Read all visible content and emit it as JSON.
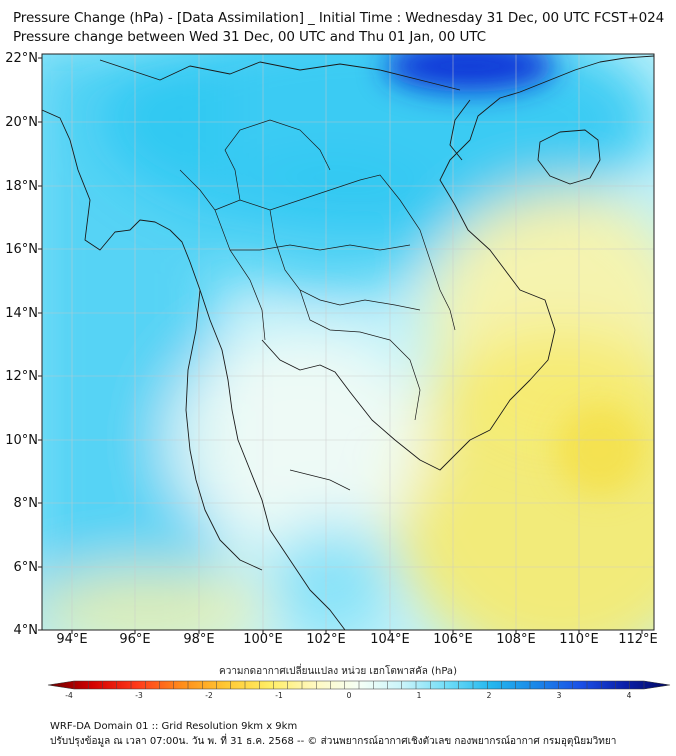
{
  "header": {
    "title_line1": "Pressure Change (hPa) - [Data Assimilation] _ Initial Time : Wednesday 31 Dec, 00 UTC FCST+024",
    "title_line2": "Pressure change between Wed 31 Dec, 00 UTC and Thu 01 Jan, 00 UTC"
  },
  "map": {
    "lat_labels": [
      "22°N",
      "20°N",
      "18°N",
      "16°N",
      "14°N",
      "12°N",
      "10°N",
      "8°N",
      "6°N",
      "4°N"
    ],
    "lon_labels": [
      "94°E",
      "96°E",
      "98°E",
      "100°E",
      "102°E",
      "104°E",
      "106°E",
      "108°E",
      "110°E",
      "112°E"
    ],
    "field_colors": {
      "strong_rise": "#0b2fd6",
      "rise": "#2bc6f2",
      "weak_rise": "#bff2fb",
      "neutral": "#f6fbf4",
      "fall": "#fbf3a6",
      "strong_fall": "#f7ea6b"
    },
    "coastline_color": "#1a1a1a",
    "grid_color": "#c9c9c9"
  },
  "colorbar": {
    "title": "ความกดอากาศเปลี่ยนแปลง หน่วย เฮกโตพาสคัล (hPa)",
    "ticks": [
      "-4",
      "-3",
      "-2",
      "-1",
      "0",
      "1",
      "2",
      "3",
      "4"
    ],
    "min": -4,
    "max": 4,
    "stops": [
      "#6a0000",
      "#d40000",
      "#ff3a1a",
      "#ff8c1a",
      "#ffc833",
      "#ffee66",
      "#fff9c0",
      "#f6fff6",
      "#c8f4fb",
      "#6fdcf7",
      "#22b6ee",
      "#1a86e8",
      "#1a4fe6",
      "#0a1fa8",
      "#020860"
    ]
  },
  "footer": {
    "line1": "WRF-DA Domain 01 :: Grid Resolution 9km x 9km",
    "line2": "ปรับปรุงข้อมูล ณ เวลา 07:00น. วัน พ. ที่ 31 ธ.ค. 2568 -- © ส่วนพยากรณ์อากาศเชิงตัวเลข กองพยากรณ์อากาศ กรมอุตุนิยมวิทยา"
  }
}
